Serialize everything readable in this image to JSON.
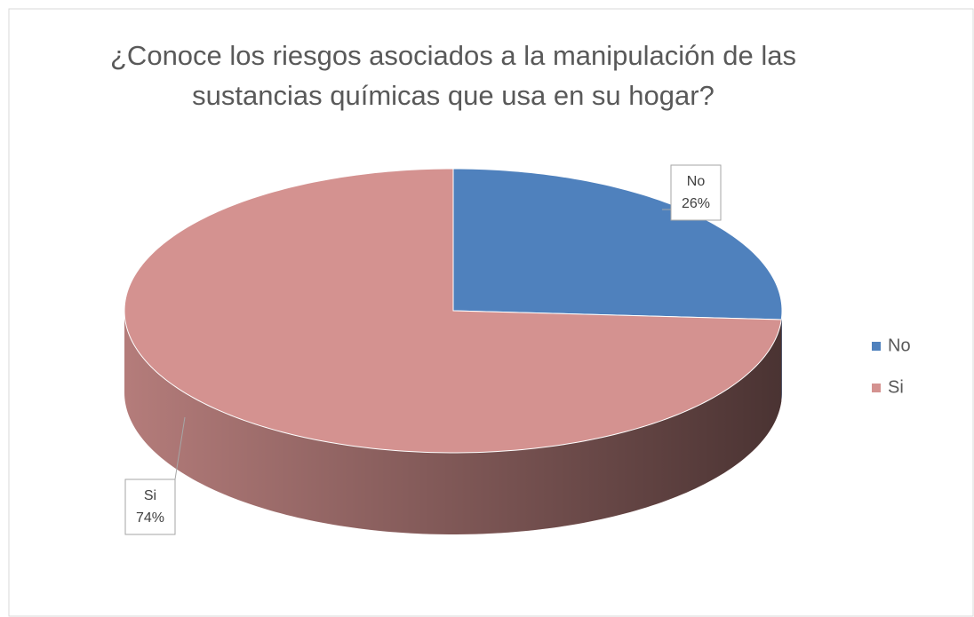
{
  "chart_data": {
    "type": "pie",
    "title": "¿Conoce los riesgos asociados a la manipulación de las sustancias químicas que usa en su hogar?",
    "categories": [
      "No",
      "Si"
    ],
    "values": [
      26,
      74
    ],
    "value_labels": [
      "26%",
      "74%"
    ],
    "colors": [
      "#4f81bd",
      "#d49290"
    ],
    "legend": "right"
  }
}
